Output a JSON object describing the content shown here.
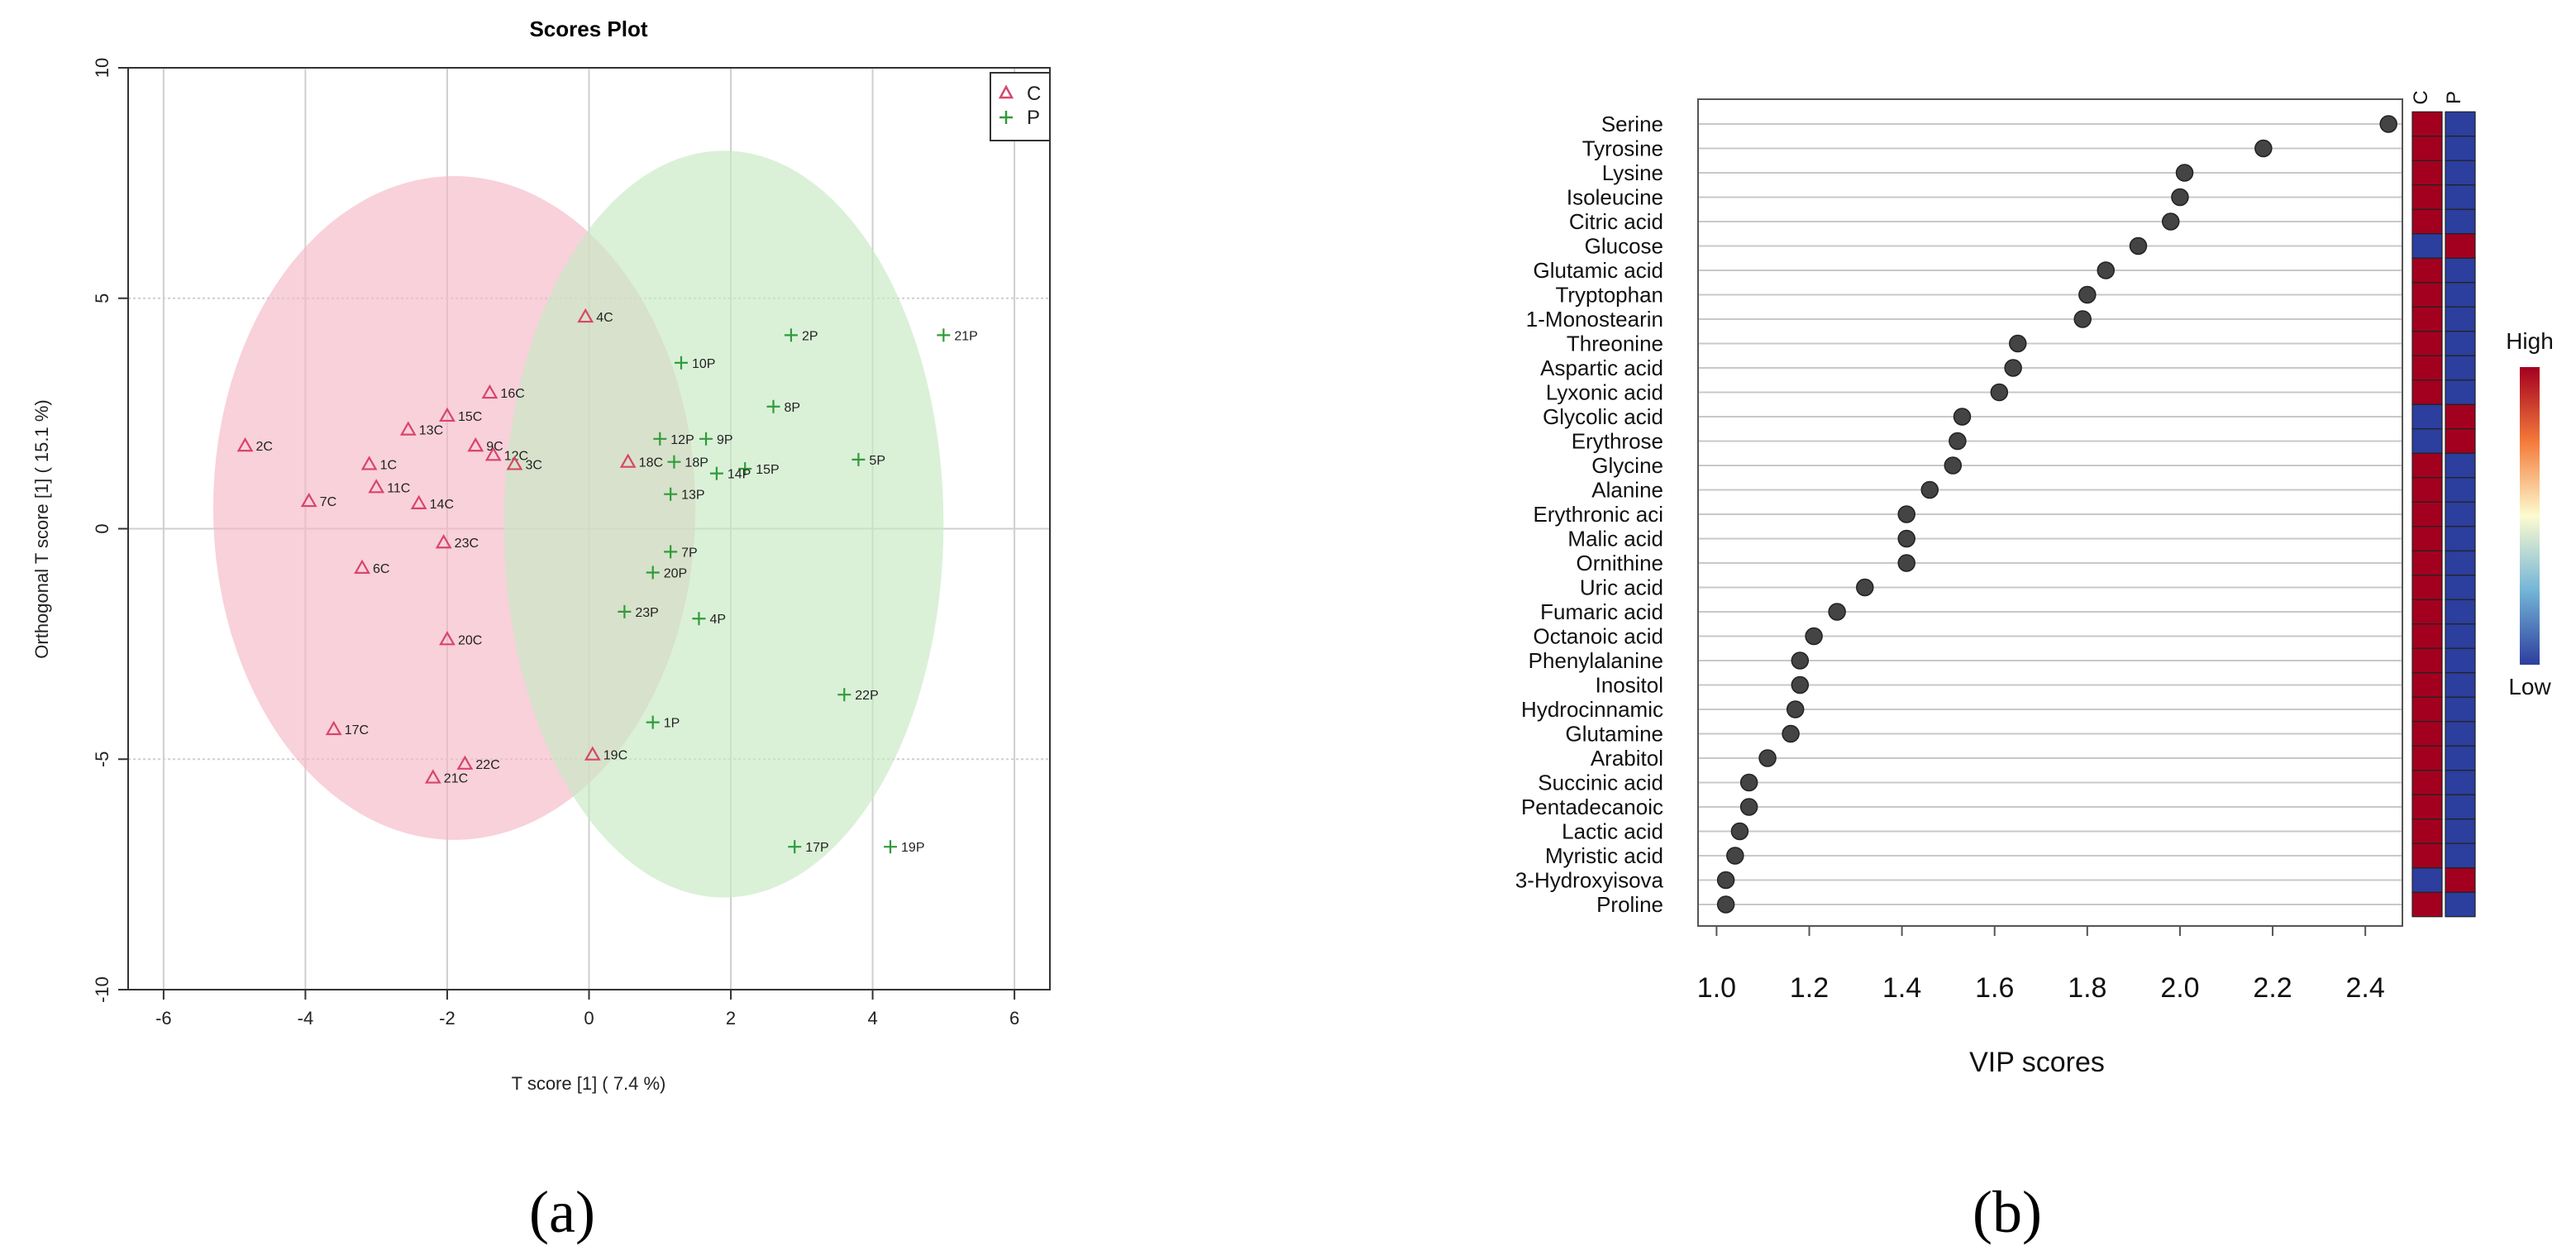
{
  "panels": {
    "a": "(a)",
    "b": "(b)"
  },
  "chart_data": [
    {
      "type": "scatter",
      "title": "Scores Plot",
      "xlabel": "T score [1] ( 7.4 %)",
      "ylabel": "Orthogonal T score [1] ( 15.1 %)",
      "xlim": [
        -6.5,
        6.5
      ],
      "ylim": [
        -10,
        10
      ],
      "xticks": [
        "-6",
        "-4",
        "-2",
        "0",
        "2",
        "4",
        "6"
      ],
      "yticks": [
        "10",
        "5",
        "0",
        "-5",
        "-10"
      ],
      "xtick_values": [
        -6,
        -4,
        -2,
        0,
        2,
        4,
        6
      ],
      "ytick_values": [
        10,
        5,
        0,
        -5,
        -10
      ],
      "legend": {
        "position": "top-right",
        "entries": [
          "C",
          "P"
        ]
      },
      "colors": {
        "C": "#d8456b",
        "P": "#2f9b3a",
        "C_ellipse": "#f4b8c6",
        "P_ellipse": "#c6e9c3"
      },
      "ellipses": [
        {
          "group": "C",
          "cx": -1.9,
          "cy": 0.45,
          "rx": 3.4,
          "ry": 7.2
        },
        {
          "group": "P",
          "cx": 1.9,
          "cy": 0.1,
          "rx": 3.1,
          "ry": 8.1
        }
      ],
      "series": [
        {
          "name": "C",
          "points": [
            {
              "label": "4C",
              "x": -0.05,
              "y": 4.6
            },
            {
              "label": "16C",
              "x": -1.4,
              "y": 2.95
            },
            {
              "label": "15C",
              "x": -2.0,
              "y": 2.45
            },
            {
              "label": "13C",
              "x": -2.55,
              "y": 2.15
            },
            {
              "label": "2C",
              "x": -4.85,
              "y": 1.8
            },
            {
              "label": "9C",
              "x": -1.6,
              "y": 1.8
            },
            {
              "label": "12C",
              "x": -1.35,
              "y": 1.6
            },
            {
              "label": "3C",
              "x": -1.05,
              "y": 1.4
            },
            {
              "label": "1C",
              "x": -3.1,
              "y": 1.4
            },
            {
              "label": "18C",
              "x": 0.55,
              "y": 1.45
            },
            {
              "label": "11C",
              "x": -3.0,
              "y": 0.9
            },
            {
              "label": "7C",
              "x": -3.95,
              "y": 0.6
            },
            {
              "label": "14C",
              "x": -2.4,
              "y": 0.55
            },
            {
              "label": "23C",
              "x": -2.05,
              "y": -0.3
            },
            {
              "label": "6C",
              "x": -3.2,
              "y": -0.85
            },
            {
              "label": "20C",
              "x": -2.0,
              "y": -2.4
            },
            {
              "label": "17C",
              "x": -3.6,
              "y": -4.35
            },
            {
              "label": "19C",
              "x": 0.05,
              "y": -4.9
            },
            {
              "label": "22C",
              "x": -1.75,
              "y": -5.1
            },
            {
              "label": "21C",
              "x": -2.2,
              "y": -5.4
            }
          ]
        },
        {
          "name": "P",
          "points": [
            {
              "label": "21P",
              "x": 5.0,
              "y": 4.2
            },
            {
              "label": "2P",
              "x": 2.85,
              "y": 4.2
            },
            {
              "label": "10P",
              "x": 1.3,
              "y": 3.6
            },
            {
              "label": "8P",
              "x": 2.6,
              "y": 2.65
            },
            {
              "label": "12P",
              "x": 1.0,
              "y": 1.95
            },
            {
              "label": "9P",
              "x": 1.65,
              "y": 1.95
            },
            {
              "label": "18P",
              "x": 1.2,
              "y": 1.45
            },
            {
              "label": "5P",
              "x": 3.8,
              "y": 1.5
            },
            {
              "label": "15P",
              "x": 2.2,
              "y": 1.3
            },
            {
              "label": "14P",
              "x": 1.8,
              "y": 1.2
            },
            {
              "label": "13P",
              "x": 1.15,
              "y": 0.75
            },
            {
              "label": "7P",
              "x": 1.15,
              "y": -0.5
            },
            {
              "label": "20P",
              "x": 0.9,
              "y": -0.95
            },
            {
              "label": "23P",
              "x": 0.5,
              "y": -1.8
            },
            {
              "label": "4P",
              "x": 1.55,
              "y": -1.95
            },
            {
              "label": "22P",
              "x": 3.6,
              "y": -3.6
            },
            {
              "label": "1P",
              "x": 0.9,
              "y": -4.2
            },
            {
              "label": "17P",
              "x": 2.9,
              "y": -6.9
            },
            {
              "label": "19P",
              "x": 4.25,
              "y": -6.9
            }
          ]
        }
      ]
    },
    {
      "type": "dot",
      "xlabel": "VIP scores",
      "xlim": [
        0.96,
        2.48
      ],
      "xticks": [
        "1.0",
        "1.2",
        "1.4",
        "1.6",
        "1.8",
        "2.0",
        "2.2",
        "2.4"
      ],
      "xtick_values": [
        1.0,
        1.2,
        1.4,
        1.6,
        1.8,
        2.0,
        2.2,
        2.4
      ],
      "heatmap_columns": [
        "C",
        "P"
      ],
      "legend": {
        "high": "High",
        "low": "Low"
      },
      "colors": {
        "high": "#a3001f",
        "low": "#2c3e9e",
        "dot": "#444444"
      },
      "metabolites": [
        {
          "name": "Serine",
          "vip": 2.45,
          "C": "high",
          "P": "low"
        },
        {
          "name": "Tyrosine",
          "vip": 2.18,
          "C": "high",
          "P": "low"
        },
        {
          "name": "Lysine",
          "vip": 2.01,
          "C": "high",
          "P": "low"
        },
        {
          "name": "Isoleucine",
          "vip": 2.0,
          "C": "high",
          "P": "low"
        },
        {
          "name": "Citric acid",
          "vip": 1.98,
          "C": "high",
          "P": "low"
        },
        {
          "name": "Glucose",
          "vip": 1.91,
          "C": "low",
          "P": "high"
        },
        {
          "name": "Glutamic acid",
          "vip": 1.84,
          "C": "high",
          "P": "low"
        },
        {
          "name": "Tryptophan",
          "vip": 1.8,
          "C": "high",
          "P": "low"
        },
        {
          "name": "1-Monostearin",
          "vip": 1.79,
          "C": "high",
          "P": "low"
        },
        {
          "name": "Threonine",
          "vip": 1.65,
          "C": "high",
          "P": "low"
        },
        {
          "name": "Aspartic acid",
          "vip": 1.64,
          "C": "high",
          "P": "low"
        },
        {
          "name": "Lyxonic acid",
          "vip": 1.61,
          "C": "high",
          "P": "low"
        },
        {
          "name": "Glycolic acid",
          "vip": 1.53,
          "C": "low",
          "P": "high"
        },
        {
          "name": "Erythrose",
          "vip": 1.52,
          "C": "low",
          "P": "high"
        },
        {
          "name": "Glycine",
          "vip": 1.51,
          "C": "high",
          "P": "low"
        },
        {
          "name": "Alanine",
          "vip": 1.46,
          "C": "high",
          "P": "low"
        },
        {
          "name": "Erythronic aci",
          "vip": 1.41,
          "C": "high",
          "P": "low"
        },
        {
          "name": "Malic acid",
          "vip": 1.41,
          "C": "high",
          "P": "low"
        },
        {
          "name": "Ornithine",
          "vip": 1.41,
          "C": "high",
          "P": "low"
        },
        {
          "name": "Uric acid",
          "vip": 1.32,
          "C": "high",
          "P": "low"
        },
        {
          "name": "Fumaric acid",
          "vip": 1.26,
          "C": "high",
          "P": "low"
        },
        {
          "name": "Octanoic acid",
          "vip": 1.21,
          "C": "high",
          "P": "low"
        },
        {
          "name": "Phenylalanine",
          "vip": 1.18,
          "C": "high",
          "P": "low"
        },
        {
          "name": "Inositol",
          "vip": 1.18,
          "C": "high",
          "P": "low"
        },
        {
          "name": "Hydrocinnamic",
          "vip": 1.17,
          "C": "high",
          "P": "low"
        },
        {
          "name": "Glutamine",
          "vip": 1.16,
          "C": "high",
          "P": "low"
        },
        {
          "name": "Arabitol",
          "vip": 1.11,
          "C": "high",
          "P": "low"
        },
        {
          "name": "Succinic acid",
          "vip": 1.07,
          "C": "high",
          "P": "low"
        },
        {
          "name": "Pentadecanoic",
          "vip": 1.07,
          "C": "high",
          "P": "low"
        },
        {
          "name": "Lactic acid",
          "vip": 1.05,
          "C": "high",
          "P": "low"
        },
        {
          "name": "Myristic acid",
          "vip": 1.04,
          "C": "high",
          "P": "low"
        },
        {
          "name": "3-Hydroxyisova",
          "vip": 1.02,
          "C": "low",
          "P": "high"
        },
        {
          "name": "Proline",
          "vip": 1.02,
          "C": "high",
          "P": "low"
        }
      ]
    }
  ]
}
